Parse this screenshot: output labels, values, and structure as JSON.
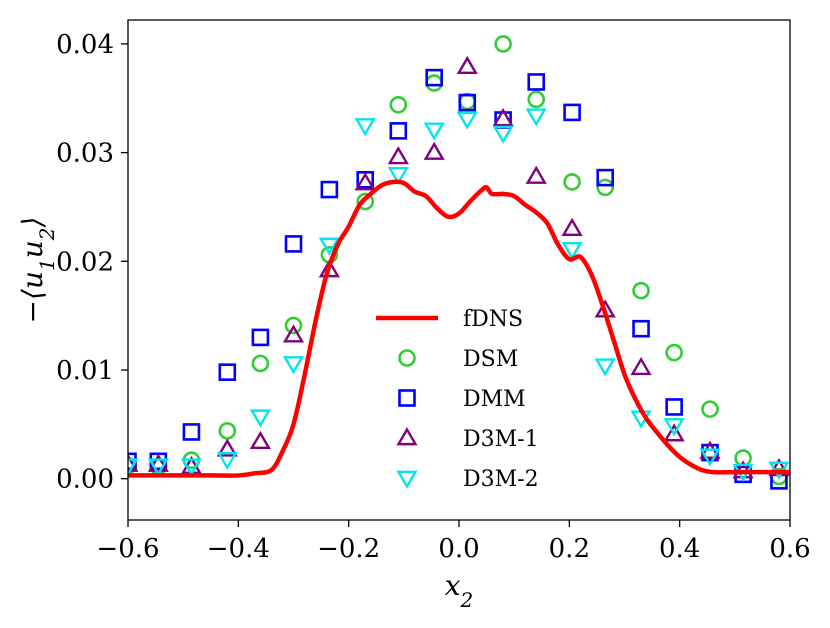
{
  "chart_data": {
    "type": "line+scatter",
    "xlabel": "x2",
    "ylabel": "-⟨u1u2⟩",
    "xlim": [
      -0.6,
      0.6
    ],
    "ylim": [
      -0.0038,
      0.0422
    ],
    "xticks": [
      "-0.6",
      "-0.4",
      "-0.2",
      "0.0",
      "0.2",
      "0.4",
      "0.6"
    ],
    "xtick_values": [
      -0.6,
      -0.4,
      -0.2,
      0.0,
      0.2,
      0.4,
      0.6
    ],
    "yticks": [
      "0.00",
      "0.01",
      "0.02",
      "0.03",
      "0.04"
    ],
    "ytick_values": [
      0.0,
      0.01,
      0.02,
      0.03,
      0.04
    ],
    "grid": false,
    "legend_position": "center",
    "series": [
      {
        "name": "fDNS",
        "kind": "line",
        "color": "#ff0000",
        "x": [
          -0.6,
          -0.5,
          -0.45,
          -0.4,
          -0.37,
          -0.34,
          -0.32,
          -0.3,
          -0.28,
          -0.26,
          -0.24,
          -0.22,
          -0.2,
          -0.18,
          -0.16,
          -0.14,
          -0.12,
          -0.1,
          -0.08,
          -0.06,
          -0.04,
          -0.02,
          0.0,
          0.02,
          0.04,
          0.05,
          0.06,
          0.08,
          0.1,
          0.12,
          0.14,
          0.16,
          0.18,
          0.2,
          0.22,
          0.24,
          0.26,
          0.28,
          0.3,
          0.32,
          0.34,
          0.36,
          0.38,
          0.4,
          0.42,
          0.44,
          0.46,
          0.5,
          0.55,
          0.6
        ],
        "y": [
          0.0003,
          0.0003,
          0.0003,
          0.0003,
          0.0005,
          0.0008,
          0.0025,
          0.005,
          0.0095,
          0.0145,
          0.0188,
          0.0215,
          0.0232,
          0.0252,
          0.0262,
          0.027,
          0.0273,
          0.0272,
          0.0264,
          0.026,
          0.0249,
          0.0241,
          0.0244,
          0.0255,
          0.0265,
          0.0268,
          0.0262,
          0.0262,
          0.026,
          0.0252,
          0.0245,
          0.0235,
          0.0215,
          0.0202,
          0.0204,
          0.0188,
          0.016,
          0.0128,
          0.0096,
          0.0073,
          0.0055,
          0.0042,
          0.003,
          0.002,
          0.0013,
          0.0008,
          0.0006,
          0.0006,
          0.0006,
          0.0006
        ]
      },
      {
        "name": "DSM",
        "kind": "scatter",
        "marker": "circle",
        "color": "#33cc33",
        "x": [
          -0.6,
          -0.545,
          -0.485,
          -0.42,
          -0.36,
          -0.3,
          -0.235,
          -0.17,
          -0.11,
          -0.045,
          0.015,
          0.08,
          0.14,
          0.205,
          0.265,
          0.33,
          0.39,
          0.455,
          0.515,
          0.58
        ],
        "y": [
          0.0012,
          0.0011,
          0.0017,
          0.0044,
          0.0106,
          0.0141,
          0.0206,
          0.0255,
          0.0344,
          0.0364,
          0.0347,
          0.04,
          0.0349,
          0.0273,
          0.0268,
          0.0173,
          0.0116,
          0.0064,
          0.0019,
          0.0002
        ]
      },
      {
        "name": "DMM",
        "kind": "scatter",
        "marker": "square",
        "color": "#0000ff",
        "x": [
          -0.6,
          -0.545,
          -0.485,
          -0.42,
          -0.36,
          -0.3,
          -0.235,
          -0.17,
          -0.11,
          -0.045,
          0.015,
          0.08,
          0.14,
          0.205,
          0.265,
          0.33,
          0.39,
          0.455,
          0.515,
          0.58
        ],
        "y": [
          0.0016,
          0.0016,
          0.0043,
          0.0098,
          0.013,
          0.0216,
          0.0266,
          0.0275,
          0.032,
          0.0369,
          0.0346,
          0.033,
          0.0365,
          0.0337,
          0.0277,
          0.0138,
          0.0066,
          0.0024,
          0.0004,
          -0.0002
        ]
      },
      {
        "name": "D3M-1",
        "kind": "scatter",
        "marker": "triangle-up",
        "color": "#800080",
        "x": [
          -0.6,
          -0.545,
          -0.485,
          -0.42,
          -0.36,
          -0.3,
          -0.235,
          -0.17,
          -0.11,
          -0.045,
          0.015,
          0.08,
          0.14,
          0.205,
          0.265,
          0.33,
          0.39,
          0.455,
          0.515,
          0.58
        ],
        "y": [
          0.0013,
          0.0013,
          0.0011,
          0.0027,
          0.0034,
          0.0132,
          0.0192,
          0.0272,
          0.0296,
          0.03,
          0.0379,
          0.0331,
          0.0278,
          0.023,
          0.0155,
          0.0102,
          0.0041,
          0.0025,
          0.0007,
          0.0009
        ]
      },
      {
        "name": "D3M-2",
        "kind": "scatter",
        "marker": "triangle-down",
        "color": "#00e5ee",
        "x": [
          -0.6,
          -0.545,
          -0.485,
          -0.42,
          -0.36,
          -0.3,
          -0.235,
          -0.17,
          -0.11,
          -0.045,
          0.015,
          0.08,
          0.14,
          0.205,
          0.265,
          0.33,
          0.39,
          0.455,
          0.515,
          0.58
        ],
        "y": [
          0.0012,
          0.0012,
          0.0012,
          0.0018,
          0.0057,
          0.0106,
          0.0215,
          0.0325,
          0.028,
          0.0321,
          0.0331,
          0.0318,
          0.0334,
          0.0211,
          0.0104,
          0.0056,
          0.0049,
          0.0021,
          0.0007,
          0.0009
        ]
      }
    ]
  }
}
